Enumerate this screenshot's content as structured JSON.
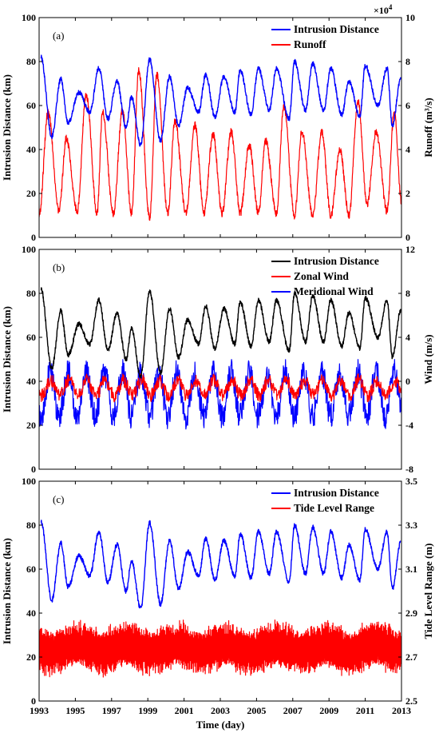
{
  "chart_data": [
    {
      "type": "line",
      "panel_label": "(a)",
      "xlim": [
        1993,
        2013
      ],
      "ylabel_left": "Intrusion Distance (km)",
      "ylim_left": [
        0,
        100
      ],
      "yticks_left": [
        "0",
        "20",
        "40",
        "60",
        "80",
        "100"
      ],
      "ylabel_right": "Runoff (m³/s)",
      "ylim_right": [
        0,
        10
      ],
      "yticks_right": [
        "0",
        "2",
        "4",
        "6",
        "8",
        "10"
      ],
      "right_multiplier": "×10",
      "right_multiplier_exp": "4",
      "legend_position": "top-right",
      "series": [
        {
          "name": "Intrusion Distance",
          "axis": "left",
          "color": "#0000ff",
          "peaks": [
            [
              1993.1,
              82
            ],
            [
              1994.2,
              72
            ],
            [
              1995.2,
              66
            ],
            [
              1996.3,
              77
            ],
            [
              1997.3,
              71
            ],
            [
              1998.1,
              64
            ],
            [
              1999.1,
              81
            ],
            [
              2000.2,
              73
            ],
            [
              2001.2,
              68
            ],
            [
              2002.2,
              74
            ],
            [
              2003.2,
              73
            ],
            [
              2004.1,
              76
            ],
            [
              2005.1,
              77
            ],
            [
              2006.1,
              77
            ],
            [
              2007.1,
              80
            ],
            [
              2008.1,
              79
            ],
            [
              2009.1,
              77
            ],
            [
              2010.1,
              71
            ],
            [
              2011.0,
              78
            ],
            [
              2012.2,
              77
            ],
            [
              2012.95,
              72
            ]
          ],
          "troughs": [
            [
              1993.7,
              46
            ],
            [
              1994.6,
              52
            ],
            [
              1995.8,
              57
            ],
            [
              1996.8,
              54
            ],
            [
              1997.8,
              50
            ],
            [
              1998.6,
              42
            ],
            [
              1999.7,
              44
            ],
            [
              2000.7,
              51
            ],
            [
              2001.8,
              57
            ],
            [
              2002.7,
              55
            ],
            [
              2003.8,
              57
            ],
            [
              2004.7,
              56
            ],
            [
              2005.7,
              58
            ],
            [
              2006.8,
              54
            ],
            [
              2007.7,
              58
            ],
            [
              2008.7,
              58
            ],
            [
              2009.7,
              56
            ],
            [
              2010.7,
              55
            ],
            [
              2011.7,
              60
            ],
            [
              2012.5,
              51
            ]
          ]
        },
        {
          "name": "Runoff",
          "axis": "right",
          "color": "#ff0000",
          "peaks": [
            [
              1993.5,
              5.7
            ],
            [
              1994.5,
              4.5
            ],
            [
              1995.6,
              6.5
            ],
            [
              1996.5,
              5.7
            ],
            [
              1997.6,
              5.8
            ],
            [
              1998.5,
              7.6
            ],
            [
              1999.5,
              7.4
            ],
            [
              2000.5,
              5.3
            ],
            [
              2001.6,
              5.1
            ],
            [
              2002.6,
              4.7
            ],
            [
              2003.6,
              4.8
            ],
            [
              2004.6,
              4.2
            ],
            [
              2005.5,
              4.4
            ],
            [
              2006.5,
              6.0
            ],
            [
              2007.5,
              4.8
            ],
            [
              2008.6,
              4.8
            ],
            [
              2009.6,
              4.0
            ],
            [
              2010.6,
              6.2
            ],
            [
              2011.6,
              4.8
            ],
            [
              2012.6,
              5.7
            ]
          ],
          "troughs": [
            [
              1993.0,
              1.0
            ],
            [
              1994.1,
              1.2
            ],
            [
              1995.1,
              1.2
            ],
            [
              1996.2,
              1.1
            ],
            [
              1997.1,
              1.1
            ],
            [
              1998.1,
              1.1
            ],
            [
              1999.1,
              0.9
            ],
            [
              2000.1,
              1.1
            ],
            [
              2001.1,
              1.1
            ],
            [
              2002.1,
              1.1
            ],
            [
              2003.1,
              1.1
            ],
            [
              2004.1,
              1.1
            ],
            [
              2005.1,
              1.1
            ],
            [
              2006.1,
              1.1
            ],
            [
              2007.1,
              1.0
            ],
            [
              2008.1,
              1.0
            ],
            [
              2009.1,
              1.0
            ],
            [
              2010.1,
              1.0
            ],
            [
              2011.1,
              1.5
            ],
            [
              2012.2,
              1.2
            ],
            [
              2013.0,
              1.6
            ]
          ]
        }
      ]
    },
    {
      "type": "line",
      "panel_label": "(b)",
      "xlim": [
        1993,
        2013
      ],
      "ylabel_left": "Intrusion Distance (km)",
      "ylim_left": [
        0,
        100
      ],
      "yticks_left": [
        "0",
        "20",
        "40",
        "60",
        "80",
        "100"
      ],
      "ylabel_right": "Wind (m/s)",
      "ylim_right": [
        -8,
        12
      ],
      "yticks_right": [
        "-8",
        "-4",
        "0",
        "4",
        "8",
        "12"
      ],
      "legend_position": "top-right",
      "series": [
        {
          "name": "Intrusion Distance",
          "axis": "left",
          "color": "#000000",
          "peaks": [
            [
              1993.1,
              82
            ],
            [
              1994.2,
              72
            ],
            [
              1995.2,
              66
            ],
            [
              1996.3,
              77
            ],
            [
              1997.3,
              71
            ],
            [
              1998.1,
              64
            ],
            [
              1999.1,
              81
            ],
            [
              2000.2,
              73
            ],
            [
              2001.2,
              68
            ],
            [
              2002.2,
              74
            ],
            [
              2003.2,
              73
            ],
            [
              2004.1,
              76
            ],
            [
              2005.1,
              77
            ],
            [
              2006.1,
              77
            ],
            [
              2007.1,
              80
            ],
            [
              2008.1,
              79
            ],
            [
              2009.1,
              77
            ],
            [
              2010.1,
              71
            ],
            [
              2011.0,
              78
            ],
            [
              2012.2,
              77
            ],
            [
              2012.95,
              72
            ]
          ],
          "troughs": [
            [
              1993.7,
              46
            ],
            [
              1994.6,
              52
            ],
            [
              1995.8,
              57
            ],
            [
              1996.8,
              54
            ],
            [
              1997.8,
              50
            ],
            [
              1998.6,
              42
            ],
            [
              1999.7,
              44
            ],
            [
              2000.7,
              51
            ],
            [
              2001.8,
              57
            ],
            [
              2002.7,
              55
            ],
            [
              2003.8,
              57
            ],
            [
              2004.7,
              56
            ],
            [
              2005.7,
              58
            ],
            [
              2006.8,
              54
            ],
            [
              2007.7,
              58
            ],
            [
              2008.7,
              58
            ],
            [
              2009.7,
              56
            ],
            [
              2010.7,
              55
            ],
            [
              2011.7,
              60
            ],
            [
              2012.5,
              51
            ]
          ]
        },
        {
          "name": "Zonal Wind",
          "axis": "right",
          "color": "#ff0000",
          "mean": -0.6,
          "amplitude": 0.7,
          "noise": 0.6
        },
        {
          "name": "Meridional Wind",
          "axis": "right",
          "color": "#0000ff",
          "mean": -1.2,
          "amplitude": 2.0,
          "noise": 1.2
        }
      ]
    },
    {
      "type": "line",
      "panel_label": "(c)",
      "xlim": [
        1993,
        2013
      ],
      "xlabel": "Time (day)",
      "xticks": [
        "1993",
        "1995",
        "1997",
        "1999",
        "2001",
        "2003",
        "2005",
        "2007",
        "2009",
        "2011",
        "2013"
      ],
      "ylabel_left": "Intrusion Distance (km)",
      "ylim_left": [
        0,
        100
      ],
      "yticks_left": [
        "0",
        "20",
        "40",
        "60",
        "80",
        "100"
      ],
      "ylabel_right": "Tide Level Range (m)",
      "ylim_right": [
        2.5,
        3.5
      ],
      "yticks_right": [
        "2.5",
        "2.7",
        "2.9",
        "3.1",
        "3.3",
        "3.5"
      ],
      "legend_position": "top-right",
      "series": [
        {
          "name": "Intrusion Distance",
          "axis": "left",
          "color": "#0000ff",
          "peaks": [
            [
              1993.1,
              82
            ],
            [
              1994.2,
              72
            ],
            [
              1995.2,
              66
            ],
            [
              1996.3,
              77
            ],
            [
              1997.3,
              71
            ],
            [
              1998.1,
              64
            ],
            [
              1999.1,
              81
            ],
            [
              2000.2,
              73
            ],
            [
              2001.2,
              68
            ],
            [
              2002.2,
              74
            ],
            [
              2003.2,
              73
            ],
            [
              2004.1,
              76
            ],
            [
              2005.1,
              77
            ],
            [
              2006.1,
              77
            ],
            [
              2007.1,
              80
            ],
            [
              2008.1,
              79
            ],
            [
              2009.1,
              77
            ],
            [
              2010.1,
              71
            ],
            [
              2011.0,
              78
            ],
            [
              2012.2,
              77
            ],
            [
              2012.95,
              72
            ]
          ],
          "troughs": [
            [
              1993.7,
              46
            ],
            [
              1994.6,
              52
            ],
            [
              1995.8,
              57
            ],
            [
              1996.8,
              54
            ],
            [
              1997.8,
              50
            ],
            [
              1998.6,
              42
            ],
            [
              1999.7,
              44
            ],
            [
              2000.7,
              51
            ],
            [
              2001.8,
              57
            ],
            [
              2002.7,
              55
            ],
            [
              2003.8,
              57
            ],
            [
              2004.7,
              56
            ],
            [
              2005.7,
              58
            ],
            [
              2006.8,
              54
            ],
            [
              2007.7,
              58
            ],
            [
              2008.7,
              58
            ],
            [
              2009.7,
              56
            ],
            [
              2010.7,
              55
            ],
            [
              2011.7,
              60
            ],
            [
              2012.5,
              51
            ]
          ]
        },
        {
          "name": "Tide Level Range",
          "axis": "right",
          "color": "#ff0000",
          "mean": 2.74,
          "amplitude": 0.12,
          "min": 2.55,
          "max": 2.92
        }
      ]
    }
  ]
}
